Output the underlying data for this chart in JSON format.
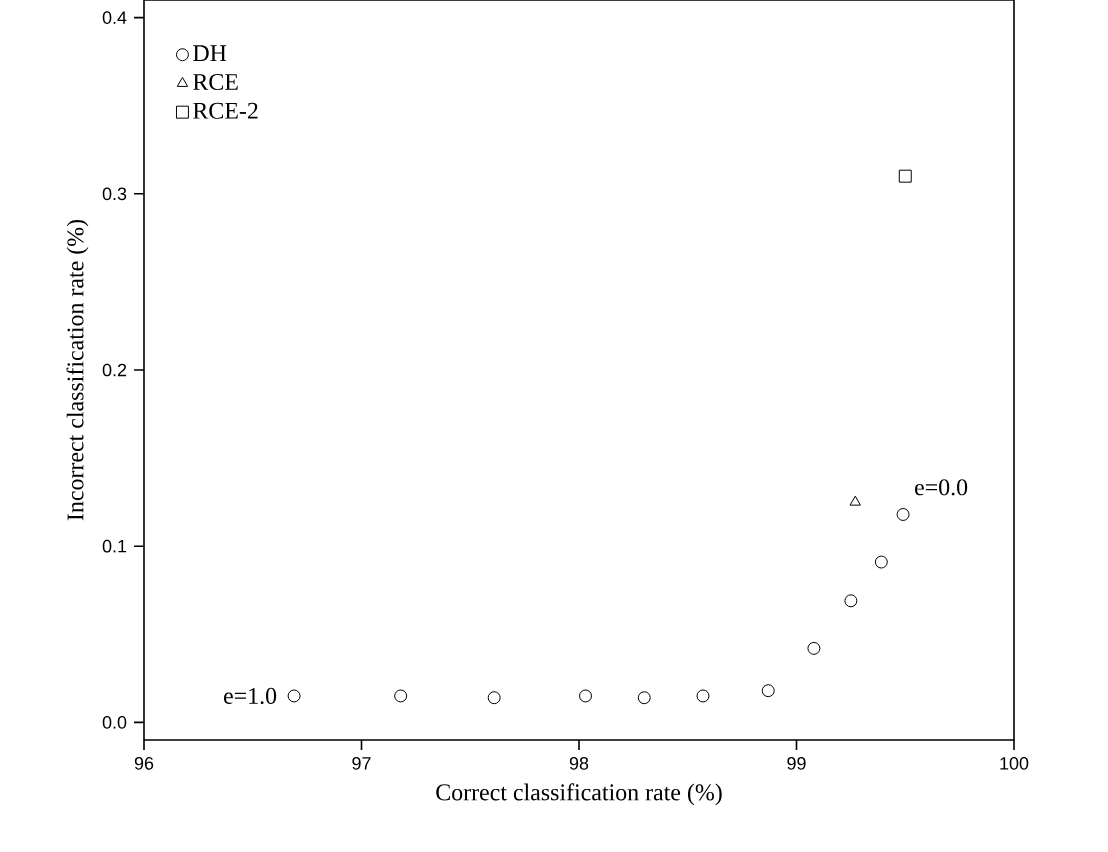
{
  "chart_data": {
    "type": "scatter",
    "xlabel": "Correct classification rate (%)",
    "ylabel": "Incorrect classification rate (%)",
    "xlim": [
      96,
      100
    ],
    "ylim": [
      -0.01,
      0.41
    ],
    "xticks": [
      96,
      97,
      98,
      99,
      100
    ],
    "yticks": [
      {
        "value": 0,
        "label": "0.0"
      },
      {
        "value": 0.1,
        "label": "0.1"
      },
      {
        "value": 0.2,
        "label": "0.2"
      },
      {
        "value": 0.3,
        "label": "0.3"
      },
      {
        "value": 0.4,
        "label": "0.4"
      }
    ],
    "legend": "top left",
    "series": [
      {
        "name": "DH",
        "color": "#000000",
        "marker": "circle",
        "x": [
          96.69,
          97.18,
          97.61,
          98.03,
          98.3,
          98.57,
          98.87,
          99.08,
          99.25,
          99.39,
          99.49
        ],
        "values": [
          0.015,
          0.015,
          0.014,
          0.015,
          0.014,
          0.015,
          0.018,
          0.042,
          0.069,
          0.091,
          0.118
        ]
      },
      {
        "name": "RCE",
        "color": "#000000",
        "marker": "triangle",
        "x": [
          99.27
        ],
        "values": [
          0.125
        ]
      },
      {
        "name": "RCE-2",
        "color": "#000000",
        "marker": "square",
        "x": [
          99.5
        ],
        "values": [
          0.31
        ]
      }
    ],
    "annotations": [
      {
        "text": "e=1.0",
        "x": 96.69,
        "y": 0.015
      },
      {
        "text": "e=0.0",
        "x": 99.49,
        "y": 0.118
      }
    ]
  }
}
